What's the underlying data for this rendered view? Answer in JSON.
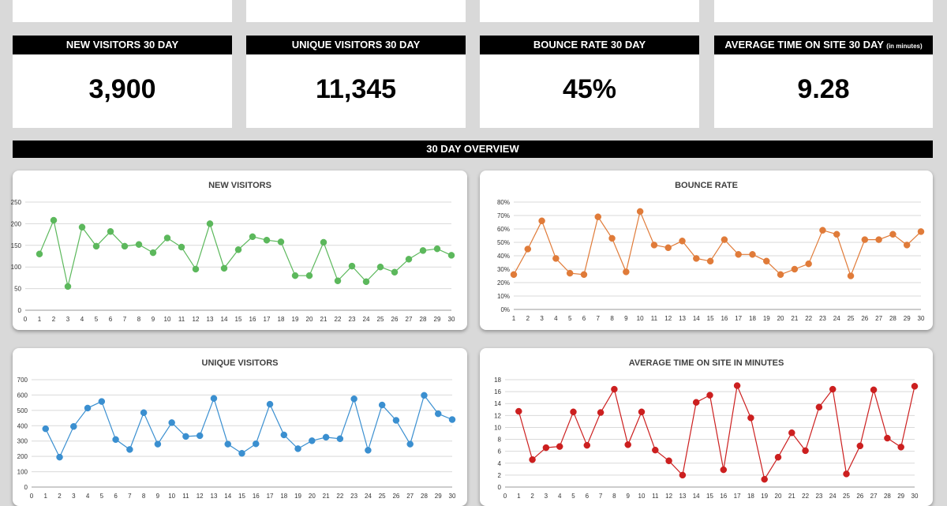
{
  "kpis": [
    {
      "label": "NEW VISITORS 30 DAY",
      "suffix": "",
      "value": "3,900"
    },
    {
      "label": "UNIQUE VISITORS 30 DAY",
      "suffix": "",
      "value": "11,345"
    },
    {
      "label": "BOUNCE RATE 30 DAY",
      "suffix": "",
      "value": "45%"
    },
    {
      "label": "AVERAGE TIME ON SITE 30 DAY",
      "suffix": "(in minutes)",
      "value": "9.28"
    }
  ],
  "section": {
    "title": "30 DAY OVERVIEW"
  },
  "chart_data": [
    {
      "type": "line",
      "title": "NEW VISITORS",
      "color": "#5cb85c",
      "x": [
        1,
        2,
        3,
        4,
        5,
        6,
        7,
        8,
        9,
        10,
        11,
        12,
        13,
        14,
        15,
        16,
        17,
        18,
        19,
        20,
        21,
        22,
        23,
        24,
        25,
        26,
        27,
        28,
        29,
        30
      ],
      "values": [
        130,
        208,
        55,
        192,
        148,
        182,
        148,
        152,
        133,
        167,
        146,
        95,
        200,
        97,
        140,
        170,
        162,
        158,
        80,
        80,
        157,
        68,
        102,
        66,
        100,
        88,
        118,
        138,
        142,
        127
      ],
      "xlim": [
        0,
        30
      ],
      "ylim": [
        0,
        250
      ],
      "yticks": [
        0,
        50,
        100,
        150,
        200,
        250
      ],
      "ytick_labels": [
        "0",
        "50",
        "100",
        "150",
        "200",
        "250"
      ],
      "grid": true
    },
    {
      "type": "line",
      "title": "BOUNCE RATE",
      "color": "#e07b39",
      "x": [
        1,
        2,
        3,
        4,
        5,
        6,
        7,
        8,
        9,
        10,
        11,
        12,
        13,
        14,
        15,
        16,
        17,
        18,
        19,
        20,
        21,
        22,
        23,
        24,
        25,
        26,
        27,
        28,
        29,
        30
      ],
      "values": [
        26,
        45,
        66,
        38,
        27,
        26,
        69,
        53,
        28,
        73,
        48,
        46,
        51,
        38,
        36,
        52,
        41,
        41,
        36,
        26,
        30,
        34,
        59,
        56,
        25,
        52,
        52,
        56,
        48,
        58
      ],
      "xlim": [
        1,
        30
      ],
      "ylim": [
        0,
        80
      ],
      "yticks": [
        0,
        10,
        20,
        30,
        40,
        50,
        60,
        70,
        80
      ],
      "ytick_labels": [
        "0%",
        "10%",
        "20%",
        "30%",
        "40%",
        "50%",
        "60%",
        "70%",
        "80%"
      ],
      "grid": true
    },
    {
      "type": "line",
      "title": "UNIQUE VISITORS",
      "color": "#3a8fd0",
      "x": [
        1,
        2,
        3,
        4,
        5,
        6,
        7,
        8,
        9,
        10,
        11,
        12,
        13,
        14,
        15,
        16,
        17,
        18,
        19,
        20,
        21,
        22,
        23,
        24,
        25,
        26,
        27,
        28,
        29,
        30
      ],
      "values": [
        380,
        195,
        395,
        515,
        558,
        310,
        245,
        485,
        280,
        420,
        330,
        335,
        578,
        280,
        220,
        282,
        540,
        340,
        250,
        302,
        325,
        315,
        575,
        240,
        535,
        435,
        280,
        598,
        478,
        440
      ],
      "xlim": [
        0,
        30
      ],
      "ylim": [
        0,
        700
      ],
      "yticks": [
        0,
        100,
        200,
        300,
        400,
        500,
        600,
        700
      ],
      "ytick_labels": [
        "0",
        "100",
        "200",
        "300",
        "400",
        "500",
        "600",
        "700"
      ],
      "grid": true
    },
    {
      "type": "line",
      "title": "AVERAGE TIME ON SITE IN MINUTES",
      "color": "#cc1f1f",
      "x": [
        1,
        2,
        3,
        4,
        5,
        6,
        7,
        8,
        9,
        10,
        11,
        12,
        13,
        14,
        15,
        16,
        17,
        18,
        19,
        20,
        21,
        22,
        23,
        24,
        25,
        26,
        27,
        28,
        29,
        30
      ],
      "values": [
        12.7,
        4.6,
        6.6,
        6.8,
        12.6,
        7.0,
        12.5,
        16.4,
        7.1,
        12.6,
        6.2,
        4.4,
        2.0,
        14.2,
        15.4,
        2.9,
        17.0,
        11.6,
        1.3,
        5.0,
        9.1,
        6.1,
        13.4,
        16.4,
        2.2,
        6.9,
        16.3,
        8.2,
        6.7,
        16.9
      ],
      "xlim": [
        0,
        30
      ],
      "ylim": [
        0,
        18
      ],
      "yticks": [
        0,
        2,
        4,
        6,
        8,
        10,
        12,
        14,
        16,
        18
      ],
      "ytick_labels": [
        "0",
        "2",
        "4",
        "6",
        "8",
        "10",
        "12",
        "14",
        "16",
        "18"
      ],
      "grid": true
    }
  ]
}
